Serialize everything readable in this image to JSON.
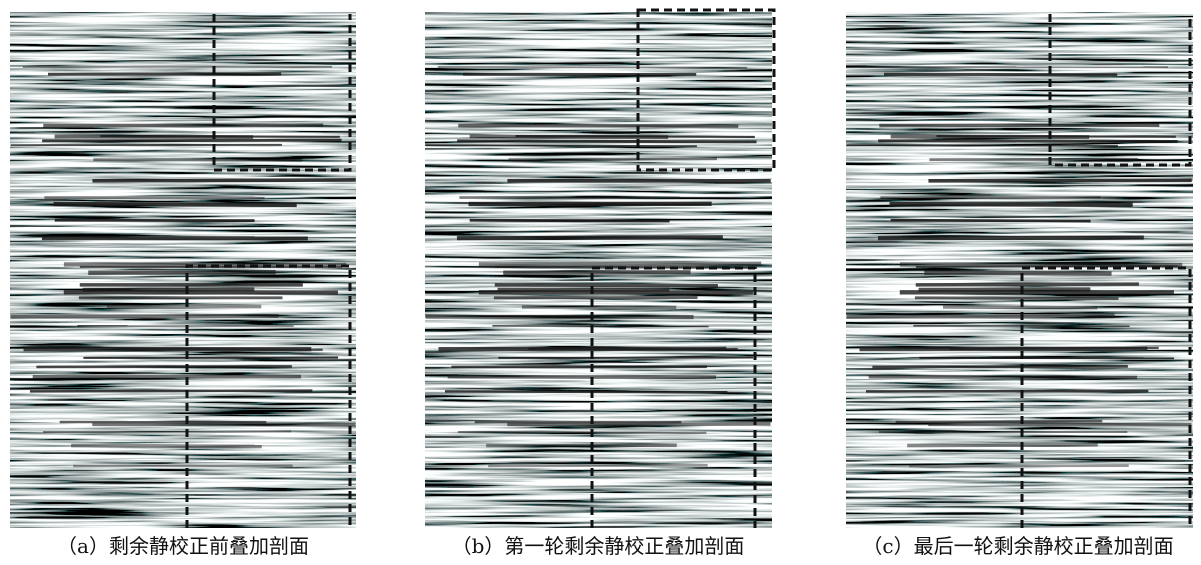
{
  "panels": [
    {
      "caption": "（a）剩余静校正前叠加剖面"
    },
    {
      "caption": "（b）第一轮剩余静校正叠加剖面"
    },
    {
      "caption": "（c）最后一轮剩余静校正叠加剖面"
    }
  ]
}
